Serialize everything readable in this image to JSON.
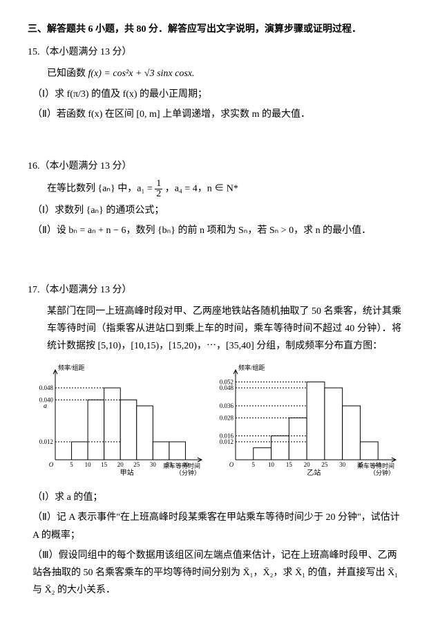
{
  "section": {
    "header": "三、解答题共 6 小题，共 80 分．解答应写出文字说明，演算步骤或证明过程．"
  },
  "p15": {
    "header": "15.（本小题满分 13 分）",
    "given_pre": "已知函数 ",
    "given_math": "f(x) = cos²x + √3 sinx cosx.",
    "part1": "（Ⅰ）求 f(π/3) 的值及 f(x) 的最小正周期；",
    "part2": "（Ⅱ）若函数 f(x) 在区间 [0, m] 上单调递增，求实数 m 的最大值．"
  },
  "p16": {
    "header": "16.（本小题满分 13 分）",
    "given_pre": "在等比数列 {aₙ} 中，a₁ = ",
    "given_frac_num": "1",
    "given_frac_den": "2",
    "given_post": "，a₄ = 4，n ∈ N*",
    "part1": "（Ⅰ）求数列 {aₙ} 的通项公式；",
    "part2": "（Ⅱ）设 bₙ = aₙ + n − 6，数列 {bₙ} 的前 n 项和为 Sₙ，若 Sₙ > 0，求 n 的最小值．"
  },
  "p17": {
    "header": "17.（本小题满分 13 分）",
    "body1": "某部门在同一上班高峰时段对甲、乙两座地铁站各随机抽取了 50 名乘客，统计其乘车等待时间（指乘客从进站口到乘上车的时间，乘车等待时间不超过 40 分钟）．将统计数据按 [5,10)，[10,15)，[15,20)，⋯，[35,40] 分组，制成频率分布直方图：",
    "part1": "（Ⅰ）求 a 的值；",
    "part2": "（Ⅱ）记 A 表示事件\"在上班高峰时段某乘客在甲站乘车等待时间少于 20 分钟\"，试估计 A 的概率；",
    "part3": "（Ⅲ）假设同组中的每个数据用该组区间左端点值来估计，记在上班高峰时段甲、乙两站各抽取的 50 名乘客乘车的平均等待时间分别为 X̄₁，X̄₂，求 X̄₁ 的值，并直接写出 X̄₁ 与 X̄₂ 的大小关系．",
    "chart_jia": {
      "type": "histogram",
      "title": "甲站",
      "y_label": "频率/组距",
      "x_label": "乘车等待时间（分钟）",
      "x_ticks": [
        0,
        5,
        10,
        15,
        20,
        25,
        30,
        35,
        40
      ],
      "y_marks": [
        0.012,
        0.04,
        0.048
      ],
      "a_label": "a",
      "bars": [
        {
          "x0": 5,
          "x1": 10,
          "h": 0.012
        },
        {
          "x0": 10,
          "x1": 15,
          "h": 0.04
        },
        {
          "x0": 15,
          "x1": 20,
          "h": 0.048
        },
        {
          "x0": 20,
          "x1": 25,
          "h": 0.04
        },
        {
          "x0": 25,
          "x1": 30,
          "h": 0.036
        },
        {
          "x0": 30,
          "x1": 35,
          "h": 0.012
        },
        {
          "x0": 35,
          "x1": 40,
          "h": 0.012
        }
      ],
      "bar_fill": "#ffffff",
      "bar_stroke": "#000000",
      "axis_color": "#000000",
      "dash_color": "#000000",
      "font_size": 9,
      "xlim": [
        0,
        45
      ],
      "ylim": [
        0,
        0.06
      ]
    },
    "chart_yi": {
      "type": "histogram",
      "title": "乙站",
      "y_label": "频率/组距",
      "x_label": "乘车等待时间（分钟）",
      "x_ticks": [
        0,
        5,
        10,
        15,
        20,
        25,
        30,
        35,
        40
      ],
      "y_marks": [
        0.012,
        0.016,
        0.028,
        0.036,
        0.048,
        0.052
      ],
      "bars": [
        {
          "x0": 5,
          "x1": 10,
          "h": 0.008
        },
        {
          "x0": 10,
          "x1": 15,
          "h": 0.016
        },
        {
          "x0": 15,
          "x1": 20,
          "h": 0.028
        },
        {
          "x0": 20,
          "x1": 25,
          "h": 0.052
        },
        {
          "x0": 25,
          "x1": 30,
          "h": 0.048
        },
        {
          "x0": 30,
          "x1": 35,
          "h": 0.036
        },
        {
          "x0": 35,
          "x1": 40,
          "h": 0.012
        }
      ],
      "bar_fill": "#ffffff",
      "bar_stroke": "#000000",
      "axis_color": "#000000",
      "dash_color": "#000000",
      "font_size": 9,
      "xlim": [
        0,
        45
      ],
      "ylim": [
        0,
        0.06
      ]
    }
  }
}
